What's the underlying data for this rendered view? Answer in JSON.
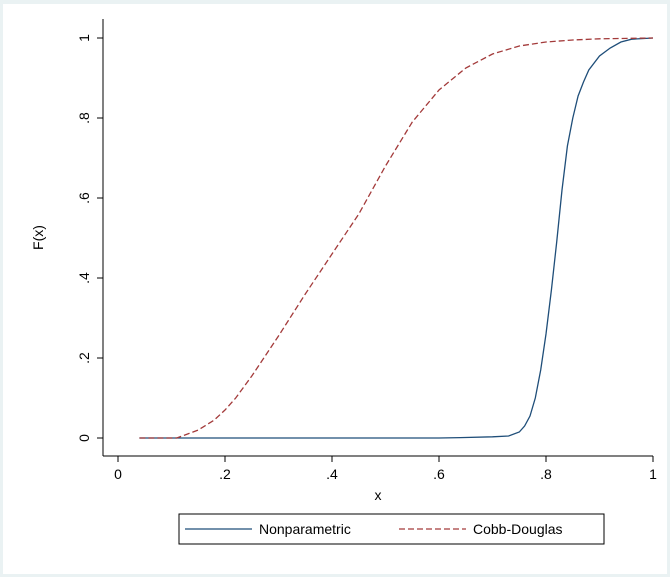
{
  "chart_data": {
    "type": "line",
    "title": "",
    "xlabel": "x",
    "ylabel": "F(x)",
    "xlim": [
      0,
      1
    ],
    "ylim": [
      0,
      1
    ],
    "x_ticks": [
      0,
      0.2,
      0.4,
      0.6,
      0.8,
      1
    ],
    "x_tick_labels": [
      "0",
      ".2",
      ".4",
      ".6",
      ".8",
      "1"
    ],
    "y_ticks": [
      0,
      0.2,
      0.4,
      0.6,
      0.8,
      1
    ],
    "y_tick_labels": [
      "0",
      ".2",
      ".4",
      ".6",
      ".8",
      "1"
    ],
    "grid": false,
    "legend_position": "bottom",
    "series": [
      {
        "name": "Nonparametric",
        "color": "#1f4e79",
        "style": "solid",
        "points": [
          [
            0.04,
            0.0
          ],
          [
            0.2,
            0.0
          ],
          [
            0.4,
            0.0
          ],
          [
            0.6,
            0.0
          ],
          [
            0.64,
            0.001
          ],
          [
            0.7,
            0.003
          ],
          [
            0.73,
            0.005
          ],
          [
            0.75,
            0.015
          ],
          [
            0.76,
            0.03
          ],
          [
            0.77,
            0.055
          ],
          [
            0.78,
            0.1
          ],
          [
            0.79,
            0.17
          ],
          [
            0.8,
            0.26
          ],
          [
            0.81,
            0.37
          ],
          [
            0.82,
            0.49
          ],
          [
            0.83,
            0.62
          ],
          [
            0.84,
            0.73
          ],
          [
            0.85,
            0.8
          ],
          [
            0.86,
            0.855
          ],
          [
            0.87,
            0.89
          ],
          [
            0.88,
            0.92
          ],
          [
            0.9,
            0.955
          ],
          [
            0.92,
            0.975
          ],
          [
            0.94,
            0.99
          ],
          [
            0.96,
            0.997
          ],
          [
            1.0,
            1.0
          ]
        ]
      },
      {
        "name": "Cobb-Douglas",
        "color": "#a33a3a",
        "style": "dashed",
        "points": [
          [
            0.04,
            0.0
          ],
          [
            0.11,
            0.0
          ],
          [
            0.13,
            0.01
          ],
          [
            0.15,
            0.02
          ],
          [
            0.18,
            0.045
          ],
          [
            0.2,
            0.07
          ],
          [
            0.22,
            0.1
          ],
          [
            0.25,
            0.155
          ],
          [
            0.3,
            0.255
          ],
          [
            0.35,
            0.36
          ],
          [
            0.4,
            0.46
          ],
          [
            0.45,
            0.56
          ],
          [
            0.5,
            0.68
          ],
          [
            0.55,
            0.79
          ],
          [
            0.6,
            0.87
          ],
          [
            0.65,
            0.925
          ],
          [
            0.7,
            0.96
          ],
          [
            0.75,
            0.98
          ],
          [
            0.8,
            0.99
          ],
          [
            0.85,
            0.995
          ],
          [
            0.9,
            0.998
          ],
          [
            1.0,
            1.0
          ]
        ]
      }
    ]
  }
}
